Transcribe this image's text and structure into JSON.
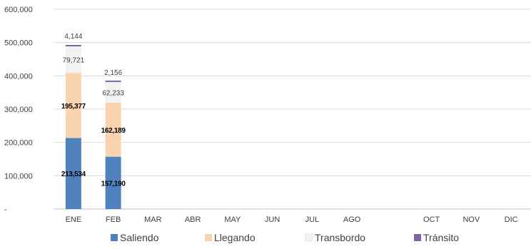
{
  "chart_data": {
    "type": "bar",
    "stacked": true,
    "categories": [
      "ENE",
      "FEB",
      "MAR",
      "ABR",
      "MAY",
      "JUN",
      "JUL",
      "AGO",
      "",
      "OCT",
      "NOV",
      "DIC"
    ],
    "series": [
      {
        "name": "Saliendo",
        "color": "#4F81BD",
        "values": [
          213534,
          157190,
          null,
          null,
          null,
          null,
          null,
          null,
          null,
          null,
          null,
          null
        ],
        "labels": [
          "213,534",
          "157,190"
        ]
      },
      {
        "name": "Llegando",
        "color": "#FAD4B0",
        "values": [
          195377,
          162189,
          null,
          null,
          null,
          null,
          null,
          null,
          null,
          null,
          null,
          null
        ],
        "labels": [
          "195,377",
          "162,189"
        ]
      },
      {
        "name": "Transbordo",
        "color": "#F2F2F2",
        "values": [
          79721,
          62233,
          null,
          null,
          null,
          null,
          null,
          null,
          null,
          null,
          null,
          null
        ],
        "labels": [
          "79,721",
          "62,233"
        ]
      },
      {
        "name": "Tránsito",
        "color": "#7F64A2",
        "values": [
          4144,
          2156,
          null,
          null,
          null,
          null,
          null,
          null,
          null,
          null,
          null,
          null
        ],
        "labels": [
          "4,144",
          "2,156"
        ]
      }
    ],
    "y_ticks": [
      {
        "value": 0,
        "label": "-"
      },
      {
        "value": 100000,
        "label": "100,000"
      },
      {
        "value": 200000,
        "label": "200,000"
      },
      {
        "value": 300000,
        "label": "300,000"
      },
      {
        "value": 400000,
        "label": "400,000"
      },
      {
        "value": 500000,
        "label": "500,000"
      },
      {
        "value": 600000,
        "label": "600,000"
      }
    ],
    "ylim": [
      0,
      600000
    ],
    "grid": true,
    "legend_position": "bottom",
    "title": "",
    "xlabel": "",
    "ylabel": ""
  }
}
